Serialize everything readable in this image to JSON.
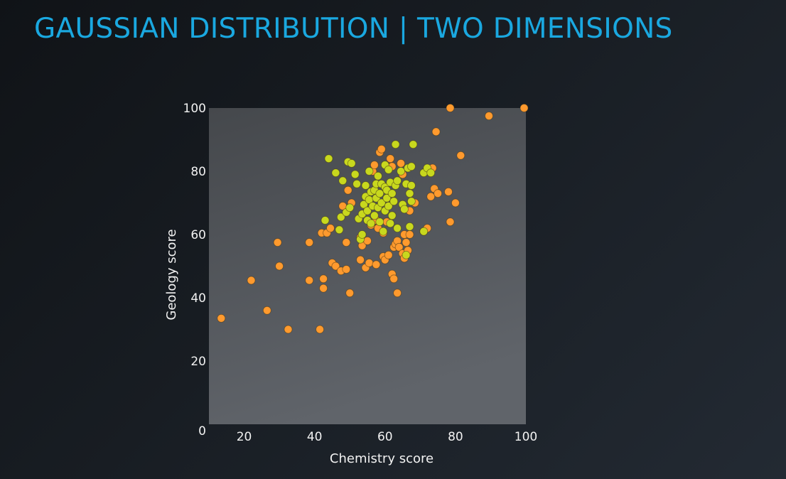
{
  "title": "GAUSSIAN DISTRIBUTION | TWO DIMENSIONS",
  "colors": {
    "title": "#1aa8e0",
    "plot_bg_top": "#46494d",
    "plot_bg_bottom": "#5d6166",
    "series_orange": "#ff9a2e",
    "series_green": "#c8d81e"
  },
  "chart_data": {
    "type": "scatter",
    "xlabel": "Chemistry score",
    "ylabel": "Geology score",
    "xlim": [
      10,
      100
    ],
    "ylim": [
      0,
      100
    ],
    "xticks": [
      20,
      40,
      60,
      80,
      100
    ],
    "yticks": [
      0,
      20,
      40,
      60,
      80,
      100
    ],
    "grid": false,
    "series": [
      {
        "color": "#ff9a2e",
        "points": [
          [
            13.5,
            33.5
          ],
          [
            22,
            45.5
          ],
          [
            26.5,
            36
          ],
          [
            29.5,
            57.5
          ],
          [
            30,
            50
          ],
          [
            32.5,
            30
          ],
          [
            38.5,
            57.5
          ],
          [
            38.5,
            45.5
          ],
          [
            41.5,
            30
          ],
          [
            42,
            60.5
          ],
          [
            42.5,
            43
          ],
          [
            42.5,
            46
          ],
          [
            43.5,
            60.5
          ],
          [
            44.5,
            62
          ],
          [
            45,
            51
          ],
          [
            46,
            50
          ],
          [
            47.5,
            48.5
          ],
          [
            48,
            69
          ],
          [
            49,
            49
          ],
          [
            49,
            57.5
          ],
          [
            49.5,
            74
          ],
          [
            50,
            41.5
          ],
          [
            50.5,
            70
          ],
          [
            53,
            59
          ],
          [
            53,
            52
          ],
          [
            53.5,
            56.5
          ],
          [
            54.5,
            49.5
          ],
          [
            55,
            58
          ],
          [
            55.5,
            51
          ],
          [
            56,
            63
          ],
          [
            56.5,
            80
          ],
          [
            57,
            82
          ],
          [
            57.5,
            50.5
          ],
          [
            57.5,
            64.5
          ],
          [
            58,
            62
          ],
          [
            58.5,
            86
          ],
          [
            59,
            87
          ],
          [
            59.5,
            60.5
          ],
          [
            59.5,
            53
          ],
          [
            60,
            52
          ],
          [
            60.5,
            64
          ],
          [
            61,
            53.5
          ],
          [
            61.5,
            84
          ],
          [
            62,
            81.5
          ],
          [
            62,
            47.5
          ],
          [
            62.5,
            56
          ],
          [
            62.5,
            46
          ],
          [
            63,
            57
          ],
          [
            63.5,
            41.5
          ],
          [
            63.5,
            58
          ],
          [
            64,
            56
          ],
          [
            64.5,
            82.5
          ],
          [
            65,
            79
          ],
          [
            65,
            54
          ],
          [
            65.5,
            60
          ],
          [
            65.5,
            52.5
          ],
          [
            66,
            57.5
          ],
          [
            66.5,
            55
          ],
          [
            67,
            67.5
          ],
          [
            67,
            60
          ],
          [
            68.5,
            70
          ],
          [
            71,
            61
          ],
          [
            72,
            62
          ],
          [
            73,
            72
          ],
          [
            73.5,
            81
          ],
          [
            74,
            74.5
          ],
          [
            74.5,
            92.5
          ],
          [
            75,
            73
          ],
          [
            78,
            73.5
          ],
          [
            78.5,
            64
          ],
          [
            78.5,
            100
          ],
          [
            80,
            70
          ],
          [
            81.5,
            85
          ],
          [
            89.5,
            97.5
          ],
          [
            99.5,
            100
          ]
        ]
      },
      {
        "color": "#c8d81e",
        "points": [
          [
            43,
            64.5
          ],
          [
            44,
            84
          ],
          [
            46,
            79.5
          ],
          [
            47,
            61.5
          ],
          [
            47.5,
            65.5
          ],
          [
            48,
            77
          ],
          [
            49,
            67
          ],
          [
            49.5,
            83
          ],
          [
            50,
            68.5
          ],
          [
            50.5,
            82.5
          ],
          [
            51.5,
            79
          ],
          [
            52,
            76
          ],
          [
            52.5,
            65
          ],
          [
            53,
            58.5
          ],
          [
            53.5,
            60
          ],
          [
            53.5,
            66.5
          ],
          [
            54,
            69.5
          ],
          [
            54.5,
            72
          ],
          [
            54.5,
            75.5
          ],
          [
            55,
            64.5
          ],
          [
            55,
            67.5
          ],
          [
            55.5,
            71
          ],
          [
            55.5,
            80
          ],
          [
            56,
            73.5
          ],
          [
            56,
            63.5
          ],
          [
            56.5,
            69
          ],
          [
            57,
            74
          ],
          [
            57,
            66
          ],
          [
            57.5,
            76
          ],
          [
            57.5,
            71.5
          ],
          [
            58,
            78.5
          ],
          [
            58,
            68.5
          ],
          [
            58.5,
            73
          ],
          [
            58.5,
            64
          ],
          [
            59,
            76
          ],
          [
            59,
            70
          ],
          [
            59.5,
            61
          ],
          [
            60,
            82
          ],
          [
            60,
            75
          ],
          [
            60,
            67.5
          ],
          [
            60.5,
            71.5
          ],
          [
            60.5,
            74
          ],
          [
            61,
            80.5
          ],
          [
            61,
            69
          ],
          [
            61.5,
            76.5
          ],
          [
            61.5,
            63.5
          ],
          [
            62,
            73
          ],
          [
            62,
            66
          ],
          [
            62.5,
            70.5
          ],
          [
            63,
            88.5
          ],
          [
            63,
            75.5
          ],
          [
            63.5,
            62
          ],
          [
            63.5,
            77
          ],
          [
            64.5,
            80
          ],
          [
            65,
            69.5
          ],
          [
            65.5,
            68
          ],
          [
            66,
            76
          ],
          [
            66,
            53.5
          ],
          [
            66.5,
            81
          ],
          [
            67,
            62.5
          ],
          [
            67,
            73
          ],
          [
            67.5,
            75.5
          ],
          [
            67.5,
            81.5
          ],
          [
            67.5,
            70.5
          ],
          [
            68,
            88.5
          ],
          [
            71,
            61
          ],
          [
            71,
            79.5
          ],
          [
            72,
            81
          ],
          [
            73,
            79.5
          ]
        ]
      }
    ]
  }
}
